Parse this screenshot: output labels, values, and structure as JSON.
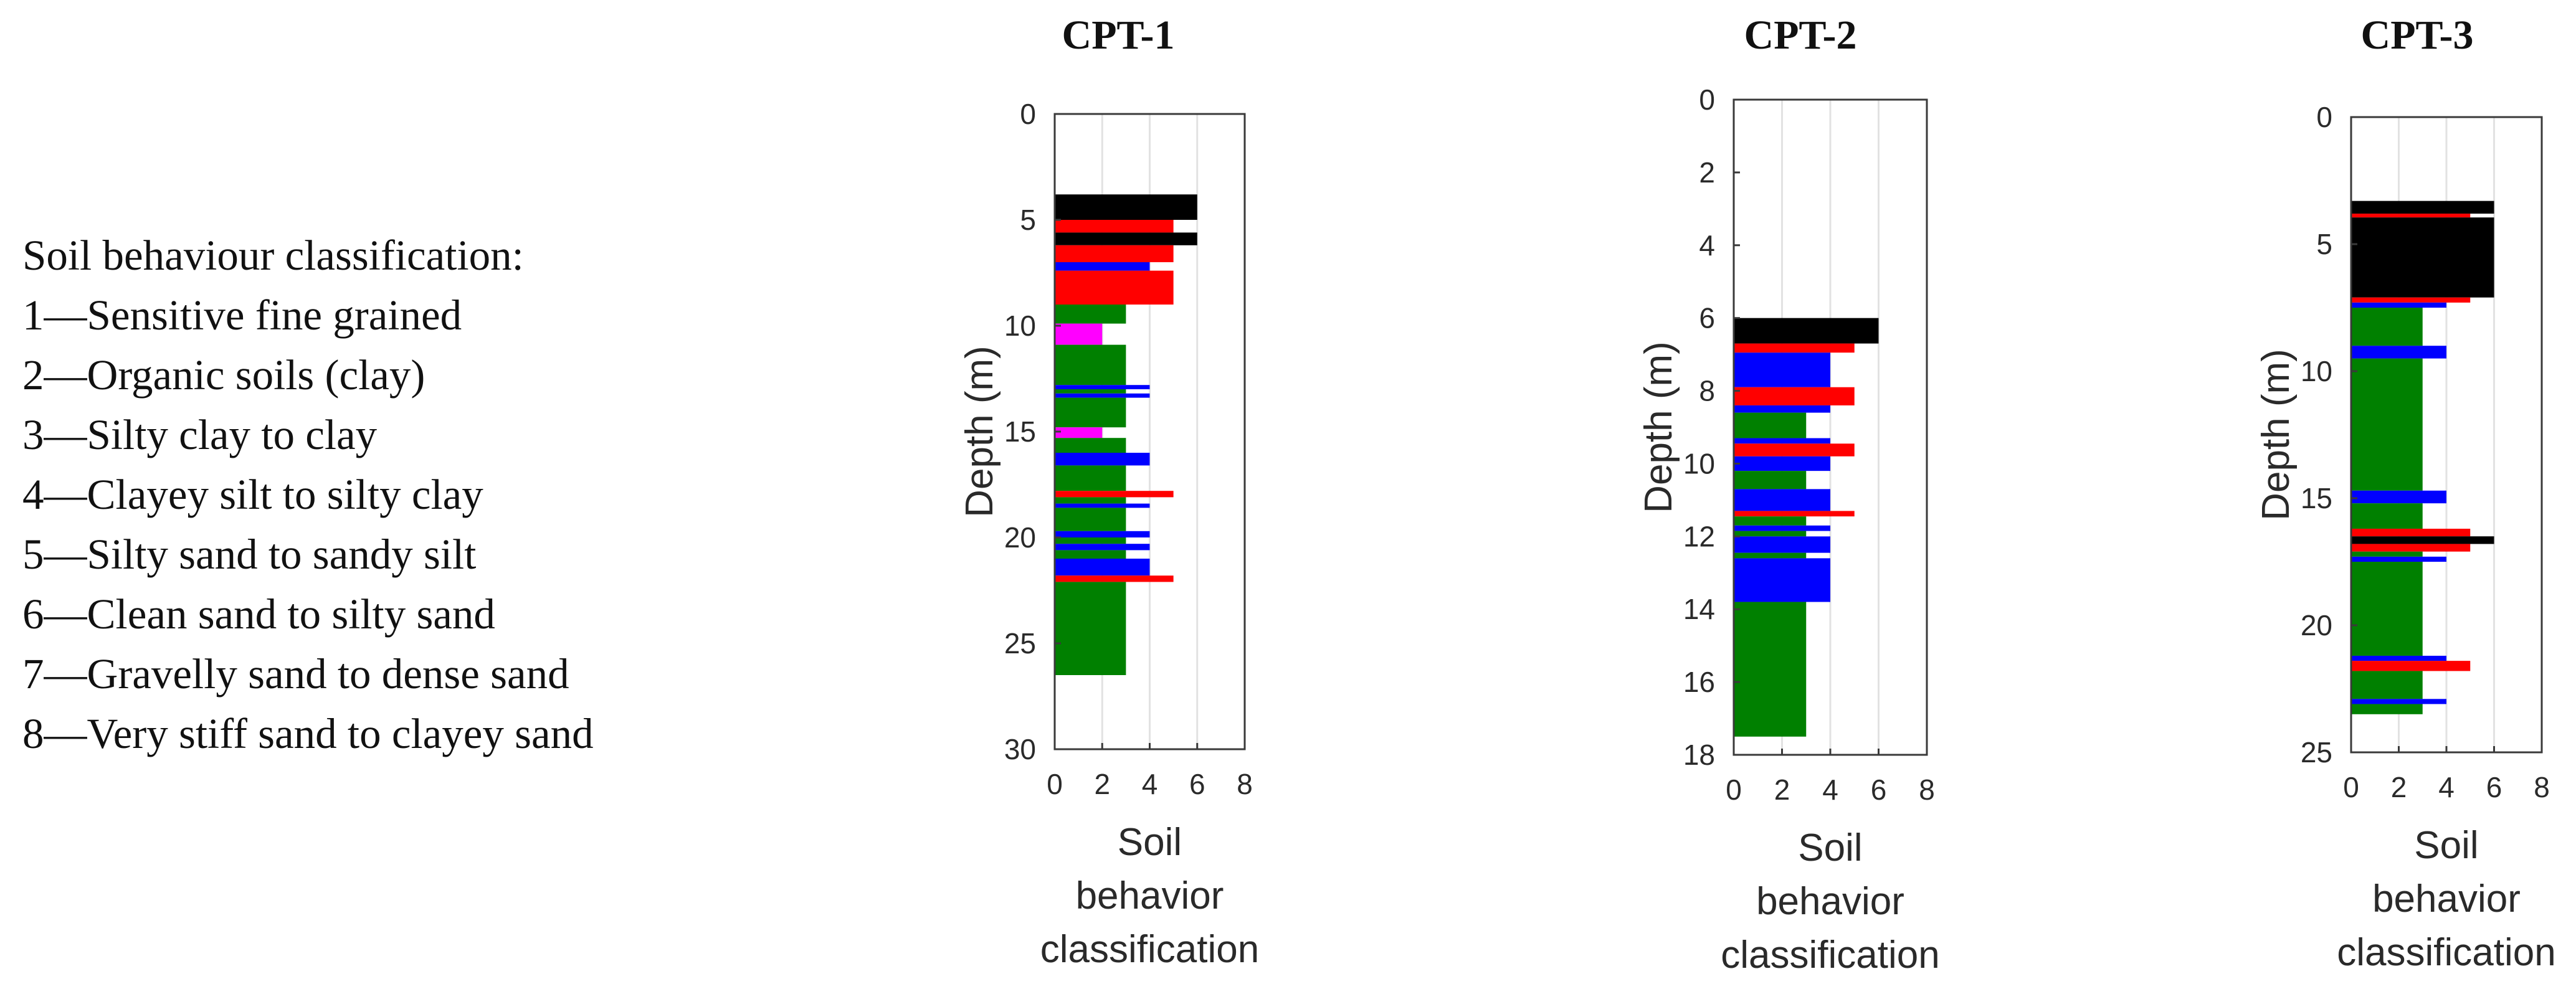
{
  "legend": {
    "title": "Soil behaviour classification:",
    "items": [
      "1—Sensitive fine grained",
      "2—Organic soils (clay)",
      "3—Silty clay to clay",
      "4—Clayey silt to silty clay",
      "5—Silty sand to sandy silt",
      "6—Clean sand to silty sand",
      "7—Gravelly sand to dense sand",
      "8—Very stiff sand to clayey sand"
    ]
  },
  "colors": {
    "2": "#ff00ff",
    "3": "#008000",
    "4": "#0000ff",
    "5": "#ff0000",
    "6": "#000000",
    "grid": "#e2e2e2",
    "axis": "#3a3a3a"
  },
  "chart_data": [
    {
      "type": "bar",
      "orientation": "horizontal",
      "title": "CPT-1",
      "xlabel": [
        "Soil",
        "behavior",
        "classification"
      ],
      "ylabel": "Depth (m)",
      "xlim": [
        0,
        8
      ],
      "ylim": [
        0,
        30
      ],
      "xticks": [
        0,
        2,
        4,
        6,
        8
      ],
      "yticks": [
        0,
        5,
        10,
        15,
        20,
        25,
        30
      ],
      "layers": [
        {
          "top": 3.8,
          "bottom": 5.0,
          "value": 6
        },
        {
          "top": 5.0,
          "bottom": 5.6,
          "value": 5
        },
        {
          "top": 5.6,
          "bottom": 6.2,
          "value": 6
        },
        {
          "top": 6.2,
          "bottom": 7.0,
          "value": 5
        },
        {
          "top": 7.0,
          "bottom": 7.4,
          "value": 4
        },
        {
          "top": 7.4,
          "bottom": 9.0,
          "value": 5
        },
        {
          "top": 9.0,
          "bottom": 9.9,
          "value": 3
        },
        {
          "top": 9.9,
          "bottom": 10.9,
          "value": 2
        },
        {
          "top": 10.9,
          "bottom": 12.8,
          "value": 3
        },
        {
          "top": 12.8,
          "bottom": 13.0,
          "value": 4
        },
        {
          "top": 13.0,
          "bottom": 13.2,
          "value": 3
        },
        {
          "top": 13.2,
          "bottom": 13.4,
          "value": 4
        },
        {
          "top": 13.4,
          "bottom": 14.8,
          "value": 3
        },
        {
          "top": 14.8,
          "bottom": 15.3,
          "value": 2
        },
        {
          "top": 15.3,
          "bottom": 16.0,
          "value": 3
        },
        {
          "top": 16.0,
          "bottom": 16.6,
          "value": 4
        },
        {
          "top": 16.6,
          "bottom": 17.8,
          "value": 3
        },
        {
          "top": 17.8,
          "bottom": 18.1,
          "value": 5
        },
        {
          "top": 18.1,
          "bottom": 18.4,
          "value": 3
        },
        {
          "top": 18.4,
          "bottom": 18.6,
          "value": 4
        },
        {
          "top": 18.6,
          "bottom": 19.7,
          "value": 3
        },
        {
          "top": 19.7,
          "bottom": 20.0,
          "value": 4
        },
        {
          "top": 20.0,
          "bottom": 20.3,
          "value": 3
        },
        {
          "top": 20.3,
          "bottom": 20.6,
          "value": 4
        },
        {
          "top": 20.6,
          "bottom": 21.0,
          "value": 3
        },
        {
          "top": 21.0,
          "bottom": 21.8,
          "value": 4
        },
        {
          "top": 21.8,
          "bottom": 22.1,
          "value": 5
        },
        {
          "top": 22.1,
          "bottom": 26.5,
          "value": 3
        }
      ]
    },
    {
      "type": "bar",
      "orientation": "horizontal",
      "title": "CPT-2",
      "xlabel": [
        "Soil",
        "behavior",
        "classification"
      ],
      "ylabel": "Depth (m)",
      "xlim": [
        0,
        8
      ],
      "ylim": [
        0,
        18
      ],
      "xticks": [
        0,
        2,
        4,
        6,
        8
      ],
      "yticks": [
        0,
        2,
        4,
        6,
        8,
        10,
        12,
        14,
        16,
        18
      ],
      "layers": [
        {
          "top": 6.0,
          "bottom": 6.7,
          "value": 6
        },
        {
          "top": 6.7,
          "bottom": 6.95,
          "value": 5
        },
        {
          "top": 6.95,
          "bottom": 7.9,
          "value": 4
        },
        {
          "top": 7.9,
          "bottom": 8.4,
          "value": 5
        },
        {
          "top": 8.4,
          "bottom": 8.6,
          "value": 4
        },
        {
          "top": 8.6,
          "bottom": 9.3,
          "value": 3
        },
        {
          "top": 9.3,
          "bottom": 9.45,
          "value": 4
        },
        {
          "top": 9.45,
          "bottom": 9.8,
          "value": 5
        },
        {
          "top": 9.8,
          "bottom": 10.2,
          "value": 4
        },
        {
          "top": 10.2,
          "bottom": 10.7,
          "value": 3
        },
        {
          "top": 10.7,
          "bottom": 11.3,
          "value": 4
        },
        {
          "top": 11.3,
          "bottom": 11.45,
          "value": 5
        },
        {
          "top": 11.45,
          "bottom": 11.7,
          "value": 3
        },
        {
          "top": 11.7,
          "bottom": 11.85,
          "value": 4
        },
        {
          "top": 11.85,
          "bottom": 12.0,
          "value": 3
        },
        {
          "top": 12.0,
          "bottom": 12.45,
          "value": 4
        },
        {
          "top": 12.45,
          "bottom": 12.6,
          "value": 3
        },
        {
          "top": 12.6,
          "bottom": 13.8,
          "value": 4
        },
        {
          "top": 13.8,
          "bottom": 17.5,
          "value": 3
        }
      ]
    },
    {
      "type": "bar",
      "orientation": "horizontal",
      "title": "CPT-3",
      "xlabel": [
        "Soil",
        "behavior",
        "classification"
      ],
      "ylabel": "Depth (m)",
      "xlim": [
        0,
        8
      ],
      "ylim": [
        0,
        25
      ],
      "xticks": [
        0,
        2,
        4,
        6,
        8
      ],
      "yticks": [
        0,
        5,
        10,
        15,
        20,
        25
      ],
      "layers": [
        {
          "top": 3.3,
          "bottom": 3.8,
          "value": 6
        },
        {
          "top": 3.8,
          "bottom": 3.95,
          "value": 5
        },
        {
          "top": 3.95,
          "bottom": 7.1,
          "value": 6
        },
        {
          "top": 7.1,
          "bottom": 7.3,
          "value": 5
        },
        {
          "top": 7.3,
          "bottom": 7.5,
          "value": 4
        },
        {
          "top": 7.5,
          "bottom": 9.0,
          "value": 3
        },
        {
          "top": 9.0,
          "bottom": 9.5,
          "value": 4
        },
        {
          "top": 9.5,
          "bottom": 14.7,
          "value": 3
        },
        {
          "top": 14.7,
          "bottom": 15.2,
          "value": 4
        },
        {
          "top": 15.2,
          "bottom": 16.2,
          "value": 3
        },
        {
          "top": 16.2,
          "bottom": 16.5,
          "value": 5
        },
        {
          "top": 16.5,
          "bottom": 16.8,
          "value": 6
        },
        {
          "top": 16.8,
          "bottom": 17.1,
          "value": 5
        },
        {
          "top": 17.1,
          "bottom": 17.3,
          "value": 3
        },
        {
          "top": 17.3,
          "bottom": 17.5,
          "value": 4
        },
        {
          "top": 17.5,
          "bottom": 21.2,
          "value": 3
        },
        {
          "top": 21.2,
          "bottom": 21.4,
          "value": 4
        },
        {
          "top": 21.4,
          "bottom": 21.8,
          "value": 5
        },
        {
          "top": 21.8,
          "bottom": 22.9,
          "value": 3
        },
        {
          "top": 22.9,
          "bottom": 23.1,
          "value": 4
        },
        {
          "top": 23.1,
          "bottom": 23.5,
          "value": 3
        }
      ]
    }
  ]
}
